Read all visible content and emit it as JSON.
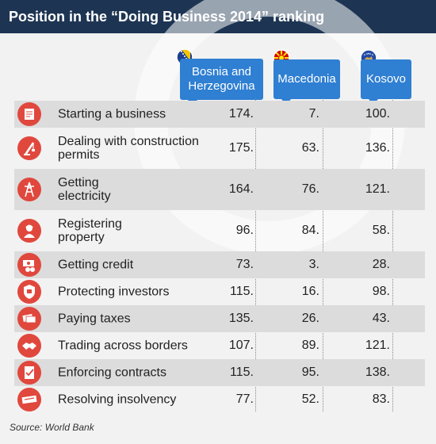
{
  "title": "Position in the “Doing Business 2014” ranking",
  "source": "Source: World Bank",
  "columns": [
    {
      "label": "Bosnia and Herzegovina",
      "line1": "Bosnia and",
      "line2": "Herzegovina"
    },
    {
      "label": "Macedonia"
    },
    {
      "label": "Kosovo"
    }
  ],
  "colors": {
    "header_bg": "#1d3553",
    "column_header": "#2f7fd2",
    "icon": "#e0483d",
    "row_shade": "#dcdcdc"
  },
  "chart_data": {
    "type": "table",
    "title": "Position in the “Doing Business 2014” ranking",
    "columns": [
      "Bosnia and Herzegovina",
      "Macedonia",
      "Kosovo"
    ],
    "rows": [
      {
        "indicator": "Starting a business",
        "line1": "Starting a business",
        "line2": "",
        "icon": "document-icon",
        "values": [
          "174.",
          "7.",
          "100."
        ]
      },
      {
        "indicator": "Dealing with construction permits",
        "line1": "Dealing with construction",
        "line2": "permits",
        "icon": "crane-icon",
        "values": [
          "175.",
          "63.",
          "136."
        ]
      },
      {
        "indicator": "Getting electricity",
        "line1": "Getting",
        "line2": "electricity",
        "icon": "power-tower-icon",
        "values": [
          "164.",
          "76.",
          "121."
        ]
      },
      {
        "indicator": "Registering property",
        "line1": "Registering",
        "line2": "property",
        "icon": "worker-icon",
        "values": [
          "96.",
          "84.",
          "58."
        ]
      },
      {
        "indicator": "Getting credit",
        "line1": "Getting credit",
        "line2": "",
        "icon": "money-icon",
        "values": [
          "73.",
          "3.",
          "28."
        ]
      },
      {
        "indicator": "Protecting investors",
        "line1": "Protecting investors",
        "line2": "",
        "icon": "shield-icon",
        "values": [
          "115.",
          "16.",
          "98."
        ]
      },
      {
        "indicator": "Paying taxes",
        "line1": "Paying taxes",
        "line2": "",
        "icon": "banknotes-icon",
        "values": [
          "135.",
          "26.",
          "43."
        ]
      },
      {
        "indicator": "Trading across borders",
        "line1": "Trading across borders",
        "line2": "",
        "icon": "handshake-icon",
        "values": [
          "107.",
          "89.",
          "121."
        ]
      },
      {
        "indicator": "Enforcing contracts",
        "line1": "Enforcing contracts",
        "line2": "",
        "icon": "contract-icon",
        "values": [
          "115.",
          "95.",
          "138."
        ]
      },
      {
        "indicator": "Resolving insolvency",
        "line1": "Resolving insolvency",
        "line2": "",
        "icon": "bankruptcy-stamp-icon",
        "values": [
          "77.",
          "52.",
          "83."
        ]
      }
    ]
  }
}
